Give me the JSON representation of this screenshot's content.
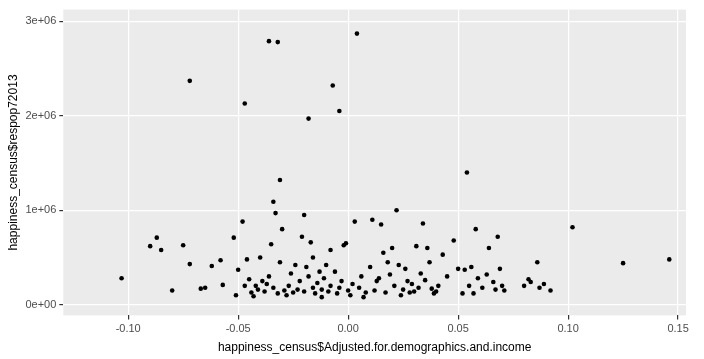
{
  "chart_data": {
    "type": "scatter",
    "x_label": "happiness_census$Adjusted.for.demographics.and.income",
    "y_label": "happiness_census$respop72013",
    "color": "#000000",
    "grid": true,
    "xlim": [
      -0.1295,
      0.1536
    ],
    "ylim": [
      -113000,
      3124000
    ],
    "xticks": [
      {
        "value": -0.1,
        "label": "-0.10"
      },
      {
        "value": -0.05,
        "label": "-0.05"
      },
      {
        "value": 0,
        "label": "0.00"
      },
      {
        "value": 0.05,
        "label": "0.05"
      },
      {
        "value": 0.1,
        "label": "0.10"
      },
      {
        "value": 0.15,
        "label": "0.15"
      }
    ],
    "yticks": [
      {
        "value": 0,
        "label": "0e+00"
      },
      {
        "value": 1000000,
        "label": "1e+06"
      },
      {
        "value": 2000000,
        "label": "2e+06"
      },
      {
        "value": 3000000,
        "label": "3e+06"
      }
    ],
    "x": [
      -0.103,
      -0.09,
      -0.087,
      -0.085,
      -0.08,
      -0.075,
      -0.072,
      -0.072,
      -0.067,
      -0.065,
      -0.062,
      -0.058,
      -0.057,
      -0.052,
      -0.051,
      -0.05,
      -0.048,
      -0.047,
      -0.047,
      -0.046,
      -0.045,
      -0.044,
      -0.043,
      -0.042,
      -0.041,
      -0.04,
      -0.039,
      -0.038,
      -0.037,
      -0.036,
      -0.036,
      -0.035,
      -0.034,
      -0.034,
      -0.033,
      -0.032,
      -0.032,
      -0.031,
      -0.031,
      -0.03,
      -0.029,
      -0.028,
      -0.027,
      -0.026,
      -0.025,
      -0.024,
      -0.023,
      -0.022,
      -0.021,
      -0.02,
      -0.02,
      -0.019,
      -0.018,
      -0.018,
      -0.017,
      -0.016,
      -0.016,
      -0.015,
      -0.014,
      -0.013,
      -0.012,
      -0.012,
      -0.011,
      -0.01,
      -0.009,
      -0.008,
      -0.008,
      -0.007,
      -0.006,
      -0.005,
      -0.004,
      -0.004,
      -0.003,
      -0.002,
      -0.001,
      0.0,
      0.001,
      0.002,
      0.003,
      0.004,
      0.005,
      0.006,
      0.007,
      0.008,
      0.01,
      0.011,
      0.012,
      0.013,
      0.014,
      0.015,
      0.016,
      0.017,
      0.018,
      0.019,
      0.02,
      0.021,
      0.022,
      0.023,
      0.024,
      0.025,
      0.026,
      0.027,
      0.028,
      0.029,
      0.03,
      0.031,
      0.032,
      0.033,
      0.034,
      0.035,
      0.036,
      0.037,
      0.038,
      0.039,
      0.04,
      0.041,
      0.043,
      0.045,
      0.048,
      0.05,
      0.052,
      0.053,
      0.054,
      0.055,
      0.056,
      0.057,
      0.058,
      0.059,
      0.061,
      0.063,
      0.064,
      0.066,
      0.067,
      0.068,
      0.069,
      0.07,
      0.071,
      0.08,
      0.082,
      0.083,
      0.086,
      0.087,
      0.089,
      0.092,
      0.102,
      0.125,
      0.146
    ],
    "values": [
      280000,
      620000,
      710000,
      580000,
      150000,
      630000,
      2370000,
      430000,
      170000,
      180000,
      410000,
      470000,
      210000,
      710000,
      100000,
      370000,
      880000,
      2130000,
      200000,
      480000,
      270000,
      130000,
      90000,
      200000,
      160000,
      500000,
      250000,
      140000,
      220000,
      2790000,
      300000,
      640000,
      180000,
      1090000,
      970000,
      2780000,
      120000,
      1320000,
      450000,
      800000,
      150000,
      100000,
      200000,
      330000,
      130000,
      420000,
      160000,
      250000,
      720000,
      950000,
      140000,
      400000,
      1970000,
      300000,
      660000,
      180000,
      500000,
      120000,
      230000,
      350000,
      80000,
      160000,
      280000,
      420000,
      140000,
      200000,
      580000,
      2320000,
      350000,
      120000,
      2050000,
      180000,
      250000,
      630000,
      650000,
      150000,
      100000,
      220000,
      880000,
      2870000,
      180000,
      300000,
      80000,
      130000,
      400000,
      900000,
      150000,
      250000,
      280000,
      850000,
      550000,
      130000,
      450000,
      320000,
      600000,
      200000,
      1000000,
      420000,
      100000,
      160000,
      380000,
      250000,
      130000,
      220000,
      140000,
      620000,
      180000,
      330000,
      860000,
      260000,
      600000,
      450000,
      170000,
      120000,
      140000,
      200000,
      530000,
      300000,
      680000,
      380000,
      120000,
      370000,
      1400000,
      200000,
      400000,
      120000,
      800000,
      280000,
      180000,
      320000,
      600000,
      240000,
      160000,
      720000,
      380000,
      200000,
      150000,
      200000,
      270000,
      240000,
      450000,
      180000,
      220000,
      150000,
      820000,
      440000,
      480000
    ]
  }
}
